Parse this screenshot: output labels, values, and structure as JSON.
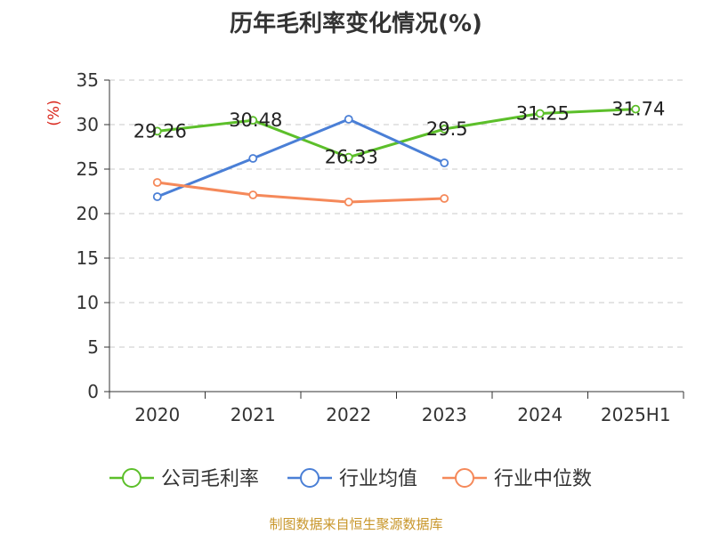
{
  "chart_data": {
    "type": "line",
    "title": "历年毛利率变化情况(%)",
    "ylabel": "(%)",
    "categories": [
      "2020",
      "2021",
      "2022",
      "2023",
      "2024",
      "2025H1"
    ],
    "ylim": [
      0,
      35
    ],
    "yticks": [
      "0",
      "5",
      "10",
      "15",
      "20",
      "25",
      "30",
      "35"
    ],
    "grid": true,
    "legend_position": "bottom",
    "series": [
      {
        "name": "公司毛利率",
        "color": "#5cbf2a",
        "values": [
          29.26,
          30.48,
          26.33,
          29.5,
          31.25,
          31.74
        ],
        "labels": [
          "29.26",
          "30.48",
          "26.33",
          "29.5",
          "31.25",
          "31.74"
        ]
      },
      {
        "name": "行业均值",
        "color": "#4a7fd6",
        "values": [
          21.9,
          26.2,
          30.6,
          25.7,
          null,
          null
        ]
      },
      {
        "name": "行业中位数",
        "color": "#f5895a",
        "values": [
          23.5,
          22.1,
          21.3,
          21.7,
          null,
          null
        ]
      }
    ]
  },
  "source": "制图数据来自恒生聚源数据库"
}
